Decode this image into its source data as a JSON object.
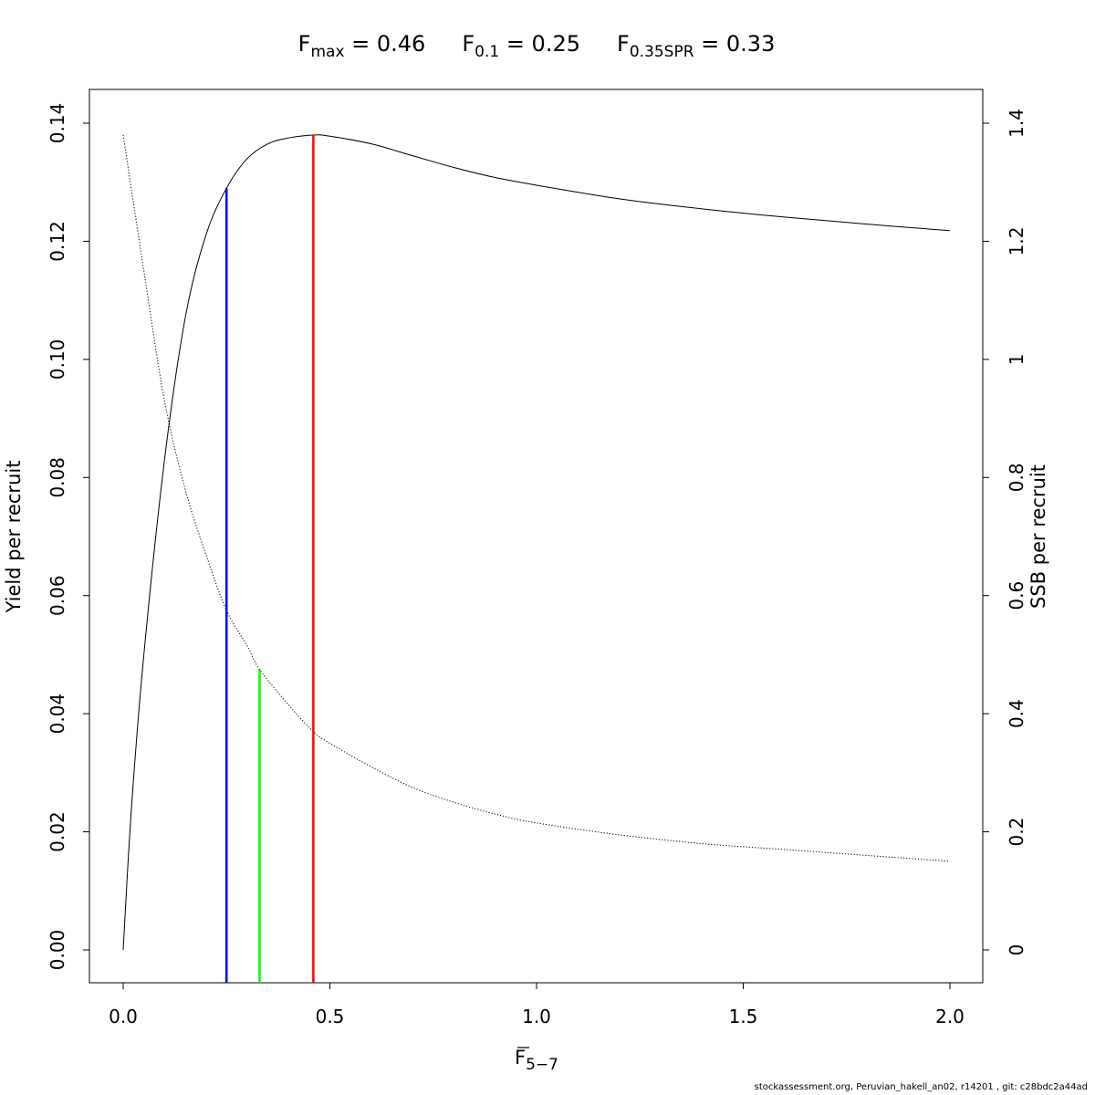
{
  "title": {
    "parts": [
      {
        "symbol": "F",
        "subscript": "max",
        "equals": " = 0.46"
      },
      {
        "symbol": "F",
        "subscript": "0.1",
        "equals": " = 0.25"
      },
      {
        "symbol": "F",
        "subscript": "0.35SPR",
        "equals": " = 0.33"
      }
    ]
  },
  "footer": "stockassessment.org, Peruvian_hakell_an02, r14201 , git: c28bdc2a44ad",
  "chart_data": {
    "type": "line",
    "title": "Fmax = 0.46   F0.1 = 0.25   F0.35SPR = 0.33",
    "xlabel": {
      "symbol": "F",
      "subscript": "5−7"
    },
    "ylabel": "Yield per recruit",
    "y2label": "SSB per recruit",
    "xlim": [
      0,
      2
    ],
    "ylim": [
      0,
      0.14
    ],
    "y2lim": [
      0,
      1.4
    ],
    "grid": false,
    "x_ticks": [
      "0.0",
      "0.5",
      "1.0",
      "1.5",
      "2.0"
    ],
    "y_ticks": [
      "0.00",
      "0.02",
      "0.04",
      "0.06",
      "0.08",
      "0.10",
      "0.12",
      "0.14"
    ],
    "y2_ticks": [
      "0",
      "0.2",
      "0.4",
      "0.6",
      "0.8",
      "1",
      "1.2",
      "1.4"
    ],
    "series": [
      {
        "axis": "left",
        "style": "solid",
        "color": "#000000",
        "x": [
          0,
          0.02,
          0.05,
          0.1,
          0.15,
          0.2,
          0.25,
          0.3,
          0.35,
          0.4,
          0.46,
          0.5,
          0.6,
          0.7,
          0.8,
          0.9,
          1.0,
          1.2,
          1.4,
          1.6,
          1.8,
          2.0
        ],
        "y": [
          0,
          0.024,
          0.05,
          0.083,
          0.107,
          0.121,
          0.129,
          0.134,
          0.1365,
          0.1375,
          0.138,
          0.1378,
          0.1365,
          0.1345,
          0.1325,
          0.1308,
          0.1295,
          0.1272,
          0.1255,
          0.1241,
          0.1229,
          0.1218
        ]
      },
      {
        "axis": "right",
        "style": "dotted",
        "color": "#000000",
        "x": [
          0,
          0.05,
          0.1,
          0.15,
          0.2,
          0.25,
          0.3,
          0.33,
          0.4,
          0.46,
          0.5,
          0.6,
          0.7,
          0.8,
          0.9,
          1.0,
          1.2,
          1.4,
          1.6,
          1.8,
          2.0
        ],
        "y": [
          1.38,
          1.15,
          0.93,
          0.78,
          0.67,
          0.575,
          0.515,
          0.475,
          0.415,
          0.37,
          0.35,
          0.31,
          0.275,
          0.25,
          0.23,
          0.215,
          0.195,
          0.18,
          0.17,
          0.16,
          0.15
        ]
      }
    ],
    "reference_lines": [
      {
        "name": "F0.1",
        "x": 0.25,
        "y": 0.129,
        "color": "#0000ff"
      },
      {
        "name": "F0.35SPR",
        "x": 0.33,
        "y": 0.0475,
        "color": "#00ff00"
      },
      {
        "name": "Fmax",
        "x": 0.46,
        "y": 0.138,
        "color": "#ff0000"
      }
    ]
  }
}
